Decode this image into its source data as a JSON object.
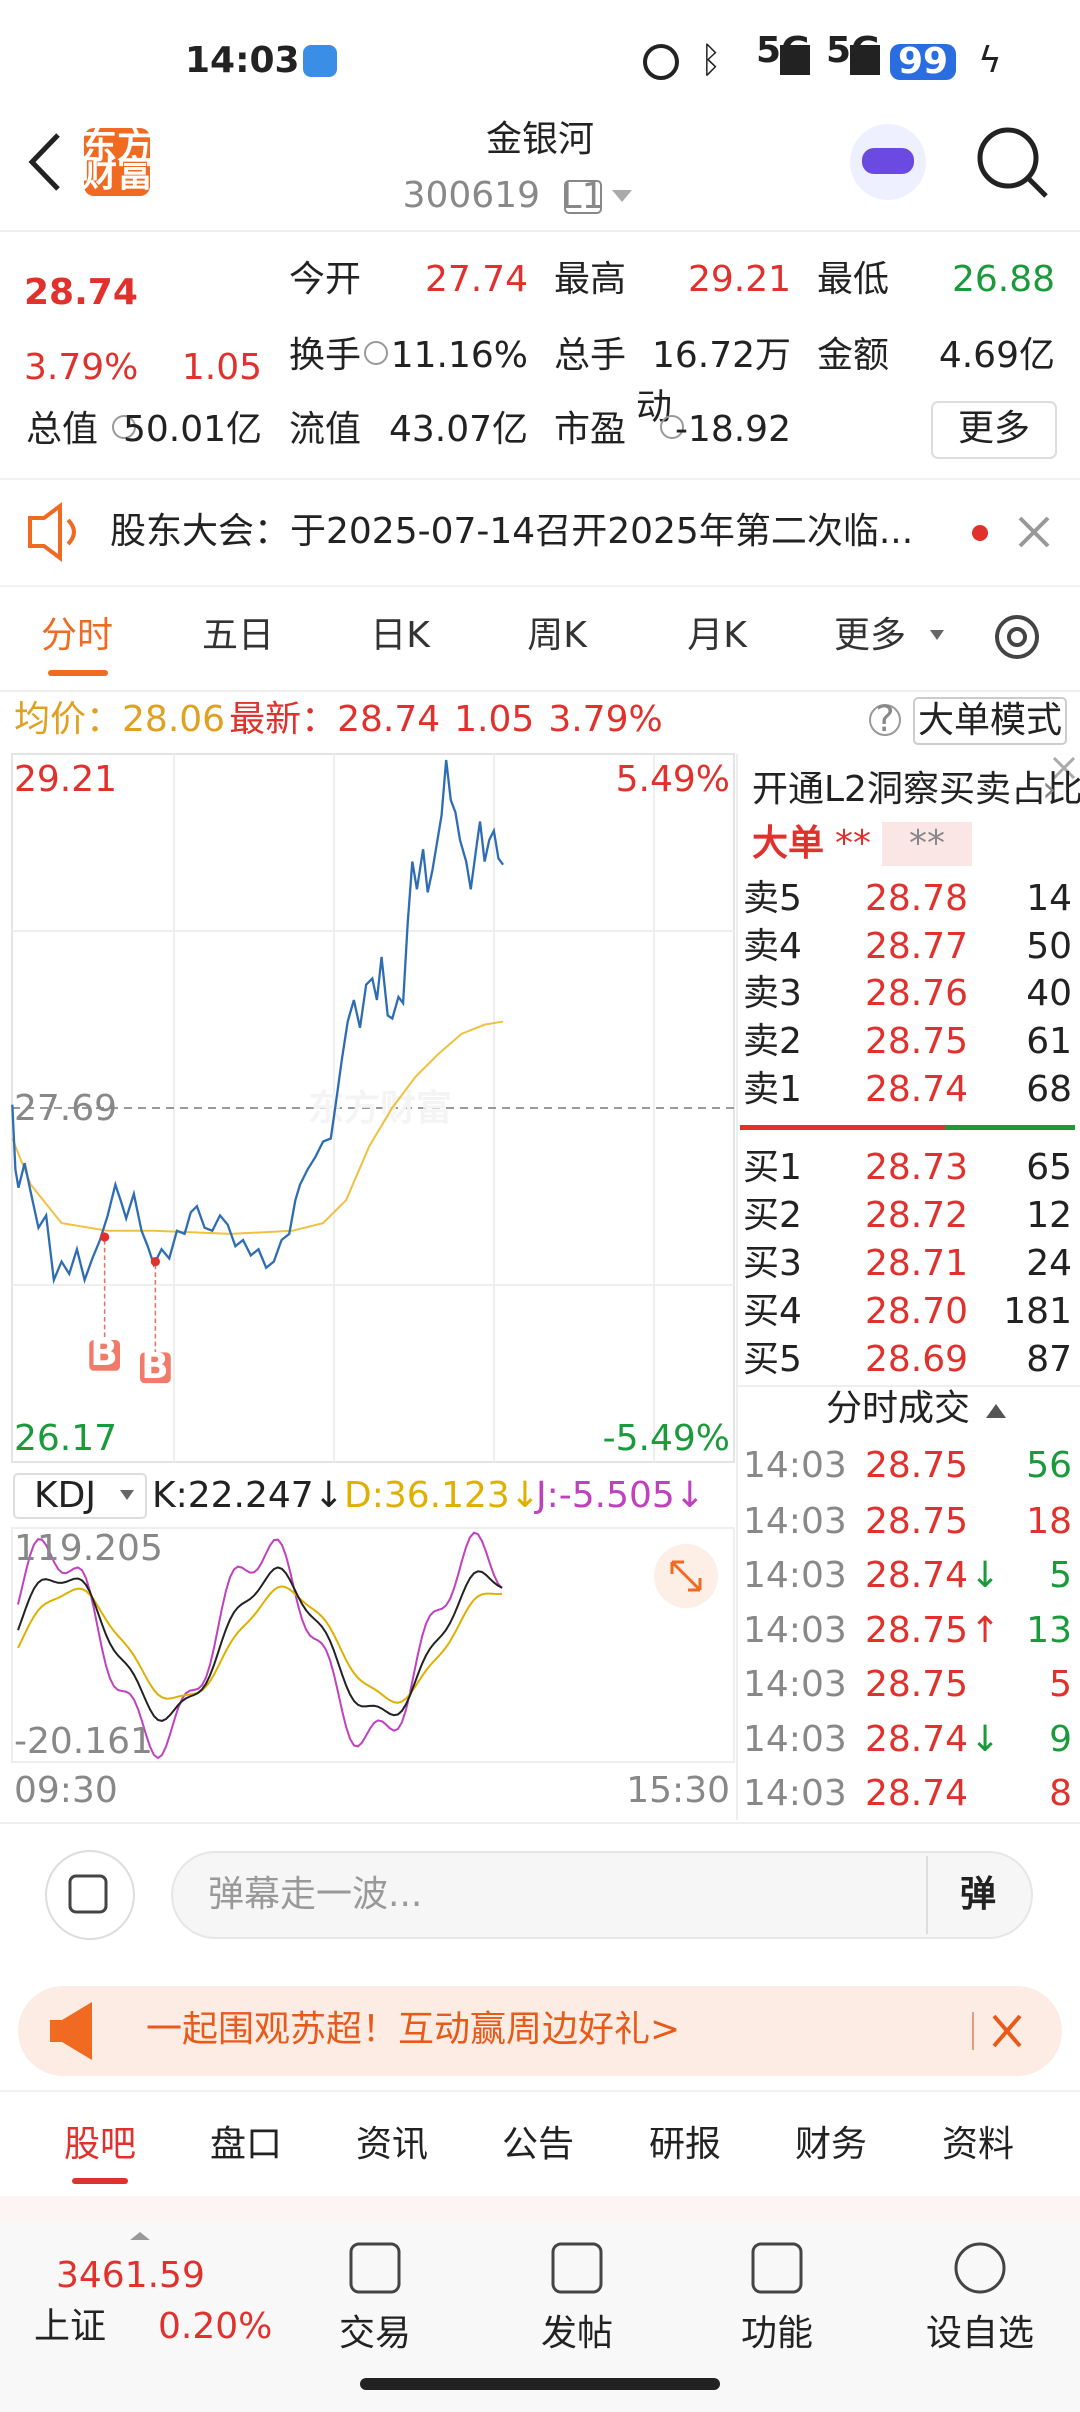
{
  "status_bar": {
    "time": "14:03",
    "net1": "5G",
    "net2": "5G",
    "battery": "99"
  },
  "header": {
    "logo": [
      "东方",
      "财富"
    ],
    "title": "金银河",
    "code": "300619",
    "level": "L1"
  },
  "quote": {
    "price": "28.74",
    "change_pct": "3.79%",
    "change": "1.05",
    "row1": [
      {
        "label": "今开",
        "value": "27.74"
      },
      {
        "label": "最高",
        "value": "29.21"
      },
      {
        "label": "最低",
        "value": "26.88"
      }
    ],
    "row2": [
      {
        "label": "换手",
        "value": "11.16%"
      },
      {
        "label": "总手",
        "value": "16.72万"
      },
      {
        "label": "金额",
        "value": "4.69亿"
      }
    ],
    "row3": [
      {
        "label": "总值",
        "value": "50.01亿"
      },
      {
        "label": "流值",
        "value": "43.07亿"
      },
      {
        "label": "市盈",
        "sup": "动",
        "value": "-18.92"
      }
    ],
    "more": "更多"
  },
  "notice": "股东大会：于2025-07-14召开2025年第二次临...",
  "tabs": [
    "分时",
    "五日",
    "日K",
    "周K",
    "月K",
    "更多"
  ],
  "info": {
    "avg_label": "均价：",
    "avg": "28.06",
    "latest_label": "最新：",
    "latest": "28.74",
    "change": "1.05",
    "pct": "3.79%",
    "mode": "大单模式"
  },
  "chart": {
    "high": "29.21",
    "high_pct": "5.49%",
    "mid": "27.69",
    "low": "26.17",
    "low_pct": "-5.49%",
    "watermark": "东方财富",
    "marker": "B",
    "kdj": {
      "name": "KDJ",
      "k": "K:22.247↓",
      "d": "D:36.123↓",
      "j": "J:-5.505↓",
      "max": "119.205",
      "min": "-20.161"
    },
    "start": "09:30",
    "end": "15:30"
  },
  "order_book": {
    "promo": "开通L2洞察买卖占比",
    "big": "大单",
    "stars": "**",
    "sells": [
      {
        "label": "卖5",
        "price": "28.78",
        "vol": "14"
      },
      {
        "label": "卖4",
        "price": "28.77",
        "vol": "50"
      },
      {
        "label": "卖3",
        "price": "28.76",
        "vol": "40"
      },
      {
        "label": "卖2",
        "price": "28.75",
        "vol": "61"
      },
      {
        "label": "卖1",
        "price": "28.74",
        "vol": "68"
      }
    ],
    "buys": [
      {
        "label": "买1",
        "price": "28.73",
        "vol": "65"
      },
      {
        "label": "买2",
        "price": "28.72",
        "vol": "12"
      },
      {
        "label": "买3",
        "price": "28.71",
        "vol": "24"
      },
      {
        "label": "买4",
        "price": "28.70",
        "vol": "181"
      },
      {
        "label": "买5",
        "price": "28.69",
        "vol": "87"
      }
    ]
  },
  "trades": {
    "title": "分时成交",
    "rows": [
      {
        "time": "14:03",
        "price": "28.75",
        "arrow": "",
        "vol": "56",
        "color": "#1a9a3a"
      },
      {
        "time": "14:03",
        "price": "28.75",
        "arrow": "",
        "vol": "18",
        "color": "#e0312c"
      },
      {
        "time": "14:03",
        "price": "28.74",
        "arrow": "↓",
        "vol": "5",
        "color": "#1a9a3a"
      },
      {
        "time": "14:03",
        "price": "28.75",
        "arrow": "↑",
        "vol": "13",
        "color": "#1a9a3a"
      },
      {
        "time": "14:03",
        "price": "28.75",
        "arrow": "",
        "vol": "5",
        "color": "#e0312c"
      },
      {
        "time": "14:03",
        "price": "28.74",
        "arrow": "↓",
        "vol": "9",
        "color": "#1a9a3a"
      },
      {
        "time": "14:03",
        "price": "28.74",
        "arrow": "",
        "vol": "8",
        "color": "#e0312c"
      }
    ]
  },
  "comment": {
    "placeholder": "弹幕走一波...",
    "button": "弹"
  },
  "banner": "一起围观苏超！互动赢周边好礼>",
  "bottom_tabs": [
    "股吧",
    "盘口",
    "资讯",
    "公告",
    "研报",
    "财务",
    "资料"
  ],
  "nav": {
    "index_value": "3461.59",
    "index_name": "上证",
    "index_pct": "0.20%",
    "items": [
      "交易",
      "发帖",
      "功能",
      "设自选"
    ]
  }
}
